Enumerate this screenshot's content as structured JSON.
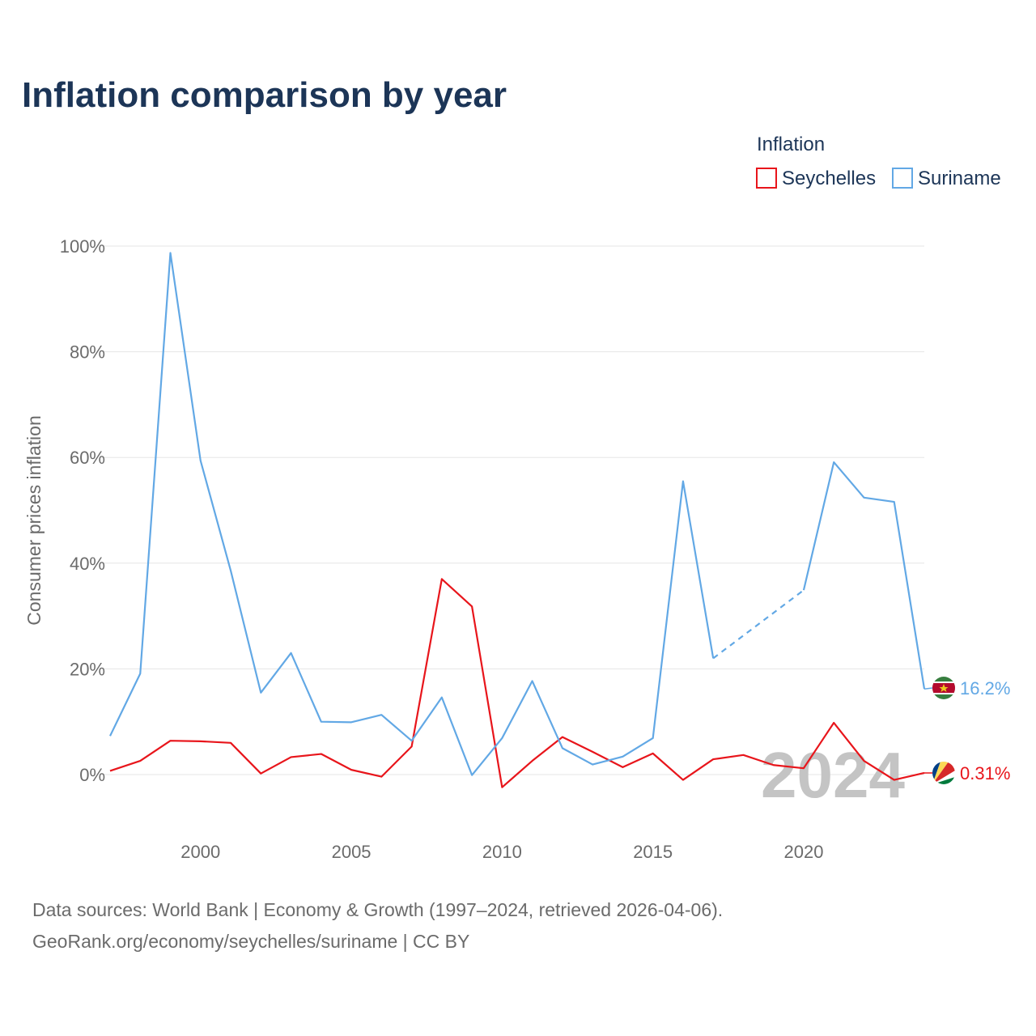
{
  "chart_data": {
    "type": "line",
    "title": "Inflation comparison by year",
    "ylabel": "Consumer prices inflation",
    "xlabel": "",
    "xlim": [
      1997,
      2024
    ],
    "ylim": [
      -10,
      100
    ],
    "yticks": [
      0,
      20,
      40,
      60,
      80,
      100
    ],
    "ytick_labels": [
      "0%",
      "20%",
      "40%",
      "60%",
      "80%",
      "100%"
    ],
    "xticks": [
      2000,
      2005,
      2010,
      2015,
      2020
    ],
    "xtick_labels": [
      "2000",
      "2005",
      "2010",
      "2015",
      "2020"
    ],
    "legend_title": "Inflation",
    "legend_position": "top-right",
    "grid": true,
    "watermark_year": "2024",
    "x": [
      1997,
      1998,
      1999,
      2000,
      2001,
      2002,
      2003,
      2004,
      2005,
      2006,
      2007,
      2008,
      2009,
      2010,
      2011,
      2012,
      2013,
      2014,
      2015,
      2016,
      2017,
      2018,
      2019,
      2020,
      2021,
      2022,
      2023,
      2024
    ],
    "series": [
      {
        "name": "Seychelles",
        "color": "#e8151b",
        "values": [
          0.7,
          2.6,
          6.4,
          6.3,
          6.0,
          0.2,
          3.3,
          3.9,
          0.9,
          -0.4,
          5.3,
          37.0,
          31.8,
          -2.4,
          2.6,
          7.1,
          4.3,
          1.4,
          4.0,
          -1.0,
          2.9,
          3.7,
          1.8,
          1.2,
          9.8,
          2.6,
          -1.0,
          0.31
        ],
        "end_label": "0.31%",
        "flag_name": "seychelles-flag-icon"
      },
      {
        "name": "Suriname",
        "color": "#62a8e5",
        "values": [
          7.3,
          19.1,
          98.7,
          59.4,
          38.6,
          15.5,
          23.0,
          10.0,
          9.9,
          11.3,
          6.4,
          14.6,
          -0.1,
          6.9,
          17.7,
          5.0,
          1.9,
          3.4,
          6.9,
          55.5,
          22.0,
          null,
          null,
          34.9,
          59.1,
          52.4,
          51.6,
          16.2
        ],
        "dashed_gap": [
          2017,
          2020
        ],
        "end_label": "16.2%",
        "flag_name": "suriname-flag-icon"
      }
    ]
  },
  "footer": {
    "source_line1": "Data sources: World Bank | Economy & Growth (1997–2024, retrieved 2026-04-06).",
    "source_line2": "GeoRank.org/economy/seychelles/suriname | CC BY"
  }
}
